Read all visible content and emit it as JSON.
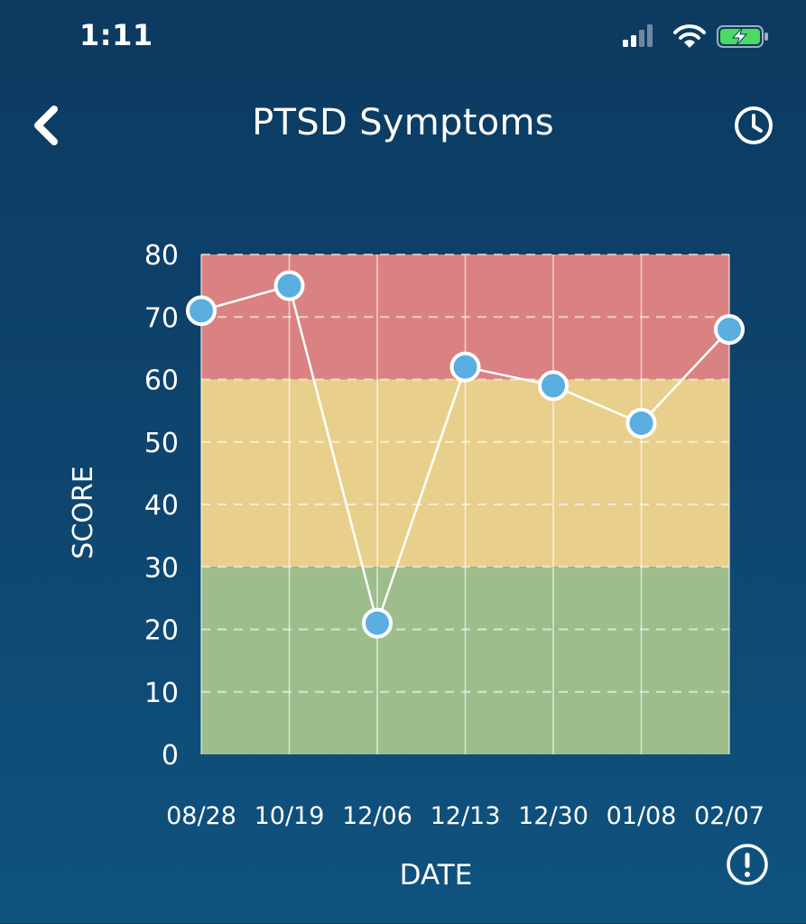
{
  "status_bar": {
    "time": "1:11",
    "icons": [
      "signal-icon",
      "wifi-icon",
      "battery-charging-icon"
    ]
  },
  "nav": {
    "back_icon": "chevron-left-icon",
    "title": "PTSD Symptoms",
    "history_icon": "clock-icon"
  },
  "info_icon": "info-circle-icon",
  "colors": {
    "background_top": "#0c3a60",
    "background_bottom": "#0f537f",
    "zone_high": "#d98281",
    "zone_mid": "#e8d08c",
    "zone_low": "#9dbe8c",
    "point_fill": "#5aaee0",
    "line": "#ffffff"
  },
  "chart_data": {
    "type": "line",
    "categories": [
      "08/28",
      "10/19",
      "12/06",
      "12/13",
      "12/30",
      "01/08",
      "02/07"
    ],
    "values": [
      71,
      75,
      21,
      62,
      59,
      53,
      68
    ],
    "xlabel": "DATE",
    "ylabel": "SCORE",
    "ylim": [
      0,
      80
    ],
    "yticks": [
      0,
      10,
      20,
      30,
      40,
      50,
      60,
      70,
      80
    ],
    "grid": true,
    "bands": [
      {
        "from": 60,
        "to": 80,
        "color": "#d98281"
      },
      {
        "from": 30,
        "to": 60,
        "color": "#e8d08c"
      },
      {
        "from": 0,
        "to": 30,
        "color": "#9dbe8c"
      }
    ]
  }
}
